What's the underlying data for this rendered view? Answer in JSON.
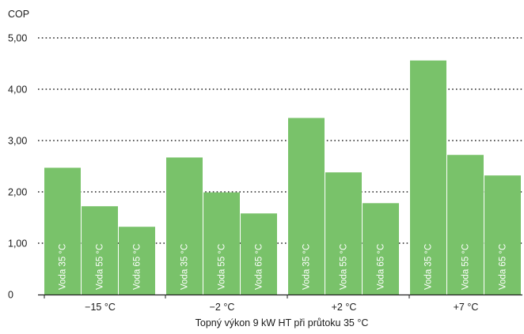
{
  "chart_data": {
    "type": "bar",
    "title": "",
    "xlabel": "Topný výkon 9 kW HT při průtoku 35 °C",
    "ylabel": "COP",
    "categories": [
      "−15 °C",
      "−2 °C",
      "+2 °C",
      "+7 °C"
    ],
    "series": [
      {
        "name": "Voda 35 °C",
        "values": [
          2.47,
          2.67,
          3.44,
          4.56
        ]
      },
      {
        "name": "Voda 55 °C",
        "values": [
          1.72,
          1.99,
          2.38,
          2.72
        ]
      },
      {
        "name": "Voda 65 °C",
        "values": [
          1.32,
          1.58,
          1.78,
          2.32
        ]
      }
    ],
    "ylim": [
      0,
      5
    ],
    "yticks": [
      0,
      1,
      2,
      3,
      4,
      5
    ],
    "ytick_labels": [
      "0",
      "1,00",
      "2,00",
      "3,00",
      "4,00",
      "5,00"
    ],
    "grid": "horizontal-dotted",
    "legend": "none",
    "bar_label_position": "inside-bottom-rotated"
  },
  "colors": {
    "bar": "#79c26a",
    "bar_separator": "#ffffff",
    "text": "#1a1a1a",
    "grid": "#222222",
    "axis": "#222222",
    "bar_label": "#ffffff"
  }
}
